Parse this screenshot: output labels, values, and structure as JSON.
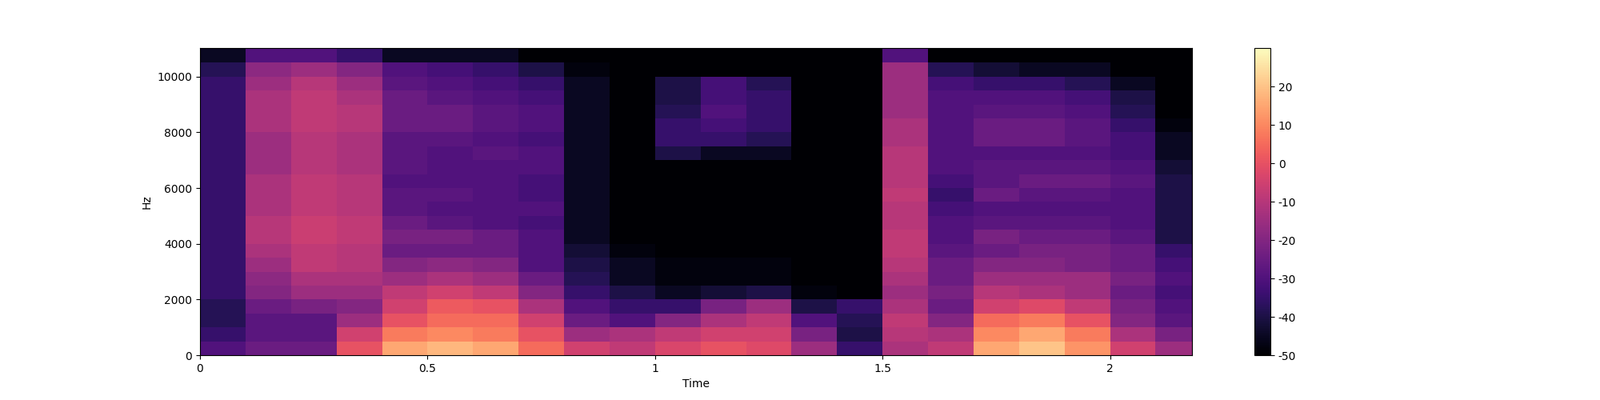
{
  "chart_data": {
    "type": "heatmap",
    "xlabel": "Time",
    "ylabel": "Hz",
    "color": "magma",
    "xlim": [
      0,
      2.18
    ],
    "ylim": [
      0,
      11025
    ],
    "xticks": [
      0,
      0.5,
      1,
      1.5,
      2
    ],
    "yticks": [
      0,
      2000,
      4000,
      6000,
      8000,
      10000
    ],
    "x": [
      0,
      0.1,
      0.2,
      0.3,
      0.4,
      0.5,
      0.6,
      0.7,
      0.8,
      0.9,
      1.0,
      1.1,
      1.2,
      1.3,
      1.4,
      1.5,
      1.6,
      1.7,
      1.8,
      1.9,
      2.0,
      2.1,
      2.18
    ],
    "y": [
      0,
      500,
      1000,
      1500,
      2000,
      2500,
      3000,
      3500,
      4000,
      4500,
      5000,
      5500,
      6000,
      6500,
      7000,
      7500,
      8000,
      8500,
      9000,
      9500,
      10000,
      10500,
      11025
    ],
    "cells": [
      [
        -30,
        -35,
        -38,
        -38,
        -35,
        -35,
        -35,
        -35,
        -35,
        -35,
        -35,
        -35,
        -35,
        -35,
        -35,
        -35,
        -35,
        -35,
        -35,
        -35,
        -38,
        -45
      ],
      [
        -25,
        -28,
        -28,
        -25,
        -20,
        -18,
        -15,
        -12,
        -10,
        -10,
        -12,
        -12,
        -12,
        -15,
        -15,
        -15,
        -12,
        -12,
        -12,
        -15,
        -18,
        -30
      ],
      [
        -25,
        -28,
        -28,
        -22,
        -15,
        -12,
        -8,
        -8,
        -6,
        -6,
        -8,
        -8,
        -8,
        -10,
        -10,
        -10,
        -8,
        -8,
        -8,
        -10,
        -15,
        -30
      ],
      [
        0,
        -5,
        -15,
        -20,
        -15,
        -12,
        -10,
        -10,
        -8,
        -8,
        -10,
        -10,
        -10,
        -12,
        -12,
        -12,
        -10,
        -10,
        -12,
        -15,
        -20,
        -35
      ],
      [
        15,
        8,
        0,
        -5,
        -8,
        -15,
        -20,
        -25,
        -22,
        -25,
        -28,
        -28,
        -30,
        -28,
        -28,
        -28,
        -25,
        -25,
        -25,
        -28,
        -30,
        -45
      ],
      [
        18,
        10,
        5,
        2,
        -5,
        -12,
        -18,
        -25,
        -22,
        -28,
        -30,
        -28,
        -30,
        -30,
        -30,
        -28,
        -25,
        -25,
        -28,
        -30,
        -32,
        -45
      ],
      [
        15,
        8,
        5,
        0,
        -8,
        -15,
        -20,
        -25,
        -25,
        -30,
        -30,
        -30,
        -30,
        -30,
        -28,
        -30,
        -28,
        -28,
        -30,
        -32,
        -35,
        -45
      ],
      [
        5,
        0,
        -5,
        -12,
        -20,
        -25,
        -30,
        -30,
        -30,
        -32,
        -30,
        -32,
        -32,
        -30,
        -30,
        -32,
        -30,
        -30,
        -32,
        -35,
        -40,
        -50
      ],
      [
        -5,
        -15,
        -25,
        -30,
        -35,
        -38,
        -40,
        -42,
        -45,
        -45,
        -45,
        -45,
        -45,
        -45,
        -45,
        -45,
        -45,
        -45,
        -45,
        -45,
        -48,
        -50
      ],
      [
        -8,
        -12,
        -30,
        -35,
        -40,
        -45,
        -45,
        -48,
        -50,
        -50,
        -50,
        -50,
        -50,
        -50,
        -50,
        -50,
        -50,
        -50,
        -50,
        -50,
        -50,
        -50
      ],
      [
        -3,
        -8,
        -20,
        -35,
        -45,
        -48,
        -48,
        -50,
        -50,
        -50,
        -50,
        -50,
        -50,
        -50,
        -40,
        -35,
        -35,
        -38,
        -40,
        -40,
        -50,
        -50
      ],
      [
        0,
        -5,
        -12,
        -22,
        -42,
        -48,
        -48,
        -50,
        -50,
        -50,
        -50,
        -50,
        -50,
        -50,
        -45,
        -35,
        -32,
        -30,
        -32,
        -32,
        -50,
        -50
      ],
      [
        -2,
        -5,
        -8,
        -15,
        -40,
        -48,
        -48,
        -50,
        -50,
        -50,
        -50,
        -50,
        -50,
        -50,
        -45,
        -38,
        -35,
        -35,
        -35,
        -38,
        -50,
        -50
      ],
      [
        -15,
        -22,
        -30,
        -40,
        -48,
        -50,
        -50,
        -50,
        -50,
        -50,
        -50,
        -50,
        -50,
        -50,
        -50,
        -50,
        -50,
        -50,
        -50,
        -50,
        -50,
        -50
      ],
      [
        -35,
        -40,
        -38,
        -35,
        -50,
        -50,
        -50,
        -50,
        -50,
        -50,
        -50,
        -50,
        -50,
        -50,
        -50,
        -50,
        -50,
        -50,
        -50,
        -50,
        -50,
        -50
      ],
      [
        -12,
        -10,
        -8,
        -12,
        -15,
        -12,
        -10,
        -8,
        -8,
        -10,
        -10,
        -8,
        -10,
        -10,
        -10,
        -12,
        -12,
        -15,
        -15,
        -15,
        -15,
        -30
      ],
      [
        -8,
        -12,
        -20,
        -25,
        -22,
        -25,
        -25,
        -28,
        -30,
        -30,
        -32,
        -35,
        -32,
        -30,
        -30,
        -30,
        -30,
        -30,
        -30,
        -32,
        -38,
        -50
      ],
      [
        15,
        10,
        5,
        -5,
        -10,
        -15,
        -20,
        -25,
        -22,
        -28,
        -30,
        -25,
        -28,
        -28,
        -30,
        -25,
        -25,
        -28,
        -30,
        -35,
        -42,
        -50
      ],
      [
        20,
        15,
        8,
        -2,
        -12,
        -15,
        -20,
        -22,
        -25,
        -28,
        -30,
        -28,
        -25,
        -28,
        -30,
        -25,
        -25,
        -28,
        -30,
        -35,
        -45,
        -50
      ],
      [
        12,
        8,
        0,
        -8,
        -15,
        -15,
        -22,
        -22,
        -25,
        -28,
        -30,
        -28,
        -25,
        -28,
        -30,
        -28,
        -28,
        -30,
        -32,
        -38,
        -45,
        -50
      ],
      [
        -5,
        -12,
        -20,
        -22,
        -25,
        -22,
        -25,
        -25,
        -28,
        -30,
        -30,
        -30,
        -28,
        -30,
        -32,
        -32,
        -35,
        -38,
        -40,
        -45,
        -50,
        -50
      ],
      [
        -15,
        -22,
        -28,
        -30,
        -32,
        -30,
        -32,
        -35,
        -40,
        -40,
        -40,
        -40,
        -40,
        -42,
        -45,
        -45,
        -48,
        -50,
        -50,
        -50,
        -50,
        -50
      ]
    ],
    "colorbar_range": [
      -50,
      30
    ],
    "colorbar_ticks": [
      -50,
      -40,
      -30,
      -20,
      -10,
      0,
      10,
      20
    ]
  }
}
